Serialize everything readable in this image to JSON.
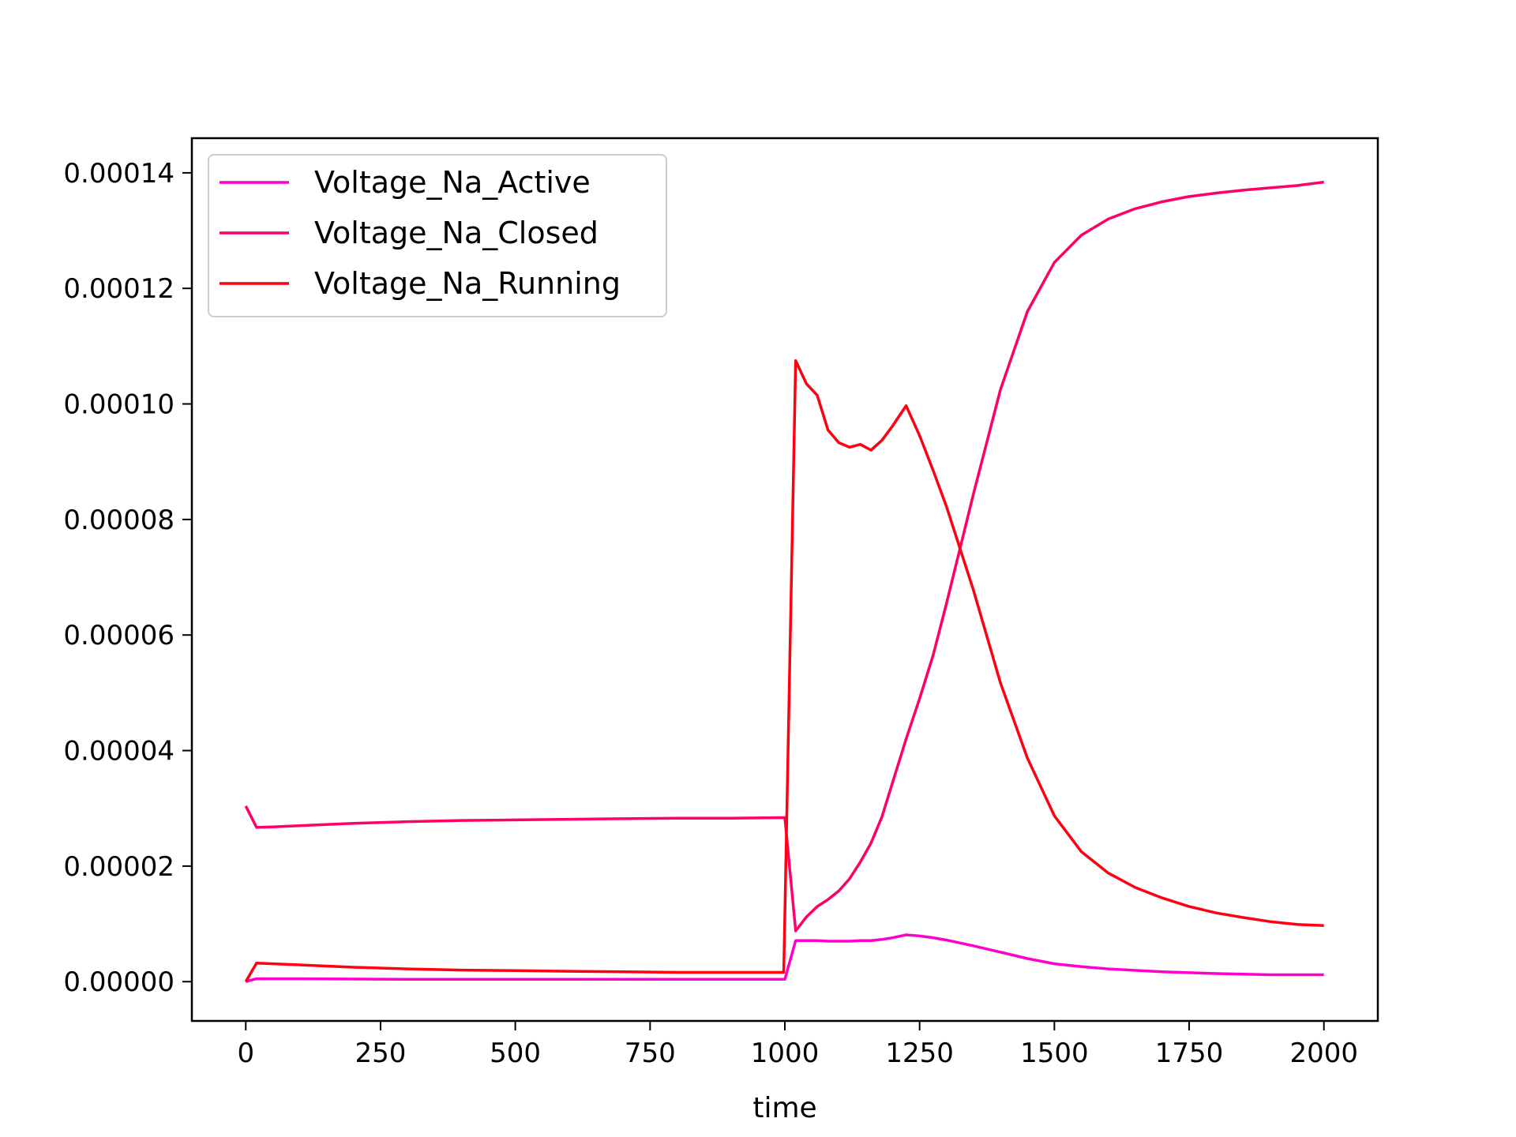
{
  "chart_data": {
    "type": "line",
    "title": "",
    "xlabel": "time",
    "ylabel": "",
    "xlim": [
      -100,
      2100
    ],
    "ylim": [
      -6.8e-06,
      0.000146
    ],
    "xticks": [
      0,
      250,
      500,
      750,
      1000,
      1250,
      1500,
      1750,
      2000
    ],
    "xtick_labels": [
      "0",
      "250",
      "500",
      "750",
      "1000",
      "1250",
      "1500",
      "1750",
      "2000"
    ],
    "yticks": [
      0,
      2e-05,
      4e-05,
      6e-05,
      8e-05,
      0.0001,
      0.00012,
      0.00014
    ],
    "ytick_labels": [
      "0.00000",
      "0.00002",
      "0.00004",
      "0.00006",
      "0.00008",
      "0.00010",
      "0.00012",
      "0.00014"
    ],
    "grid": false,
    "legend_position": "top-left",
    "series": [
      {
        "name": "Voltage_Na_Active",
        "color": "#ff00cc",
        "x": [
          0,
          20,
          100,
          300,
          500,
          700,
          1000,
          1020,
          1040,
          1060,
          1080,
          1100,
          1120,
          1140,
          1160,
          1180,
          1200,
          1225,
          1250,
          1275,
          1300,
          1350,
          1400,
          1450,
          1500,
          1550,
          1600,
          1700,
          1800,
          1900,
          2000
        ],
        "y": [
          0.0,
          5e-07,
          5e-07,
          4e-07,
          4e-07,
          4e-07,
          4e-07,
          7.1e-06,
          7.1e-06,
          7.1e-06,
          7e-06,
          7e-06,
          7e-06,
          7.1e-06,
          7.1e-06,
          7.3e-06,
          7.6e-06,
          8.1e-06,
          7.9e-06,
          7.6e-06,
          7.2e-06,
          6.2e-06,
          5.1e-06,
          4e-06,
          3.1e-06,
          2.6e-06,
          2.2e-06,
          1.7e-06,
          1.4e-06,
          1.2e-06,
          1.2e-06
        ]
      },
      {
        "name": "Voltage_Na_Closed",
        "color": "#ff0066",
        "x": [
          0,
          20,
          50,
          100,
          200,
          300,
          400,
          500,
          600,
          700,
          800,
          900,
          1000,
          1020,
          1040,
          1060,
          1080,
          1100,
          1120,
          1140,
          1160,
          1180,
          1200,
          1225,
          1250,
          1275,
          1300,
          1350,
          1400,
          1450,
          1500,
          1550,
          1600,
          1650,
          1700,
          1750,
          1800,
          1850,
          1900,
          1950,
          2000
        ],
        "y": [
          3.04e-05,
          2.67e-05,
          2.68e-05,
          2.7e-05,
          2.74e-05,
          2.77e-05,
          2.79e-05,
          2.8e-05,
          2.81e-05,
          2.82e-05,
          2.83e-05,
          2.83e-05,
          2.84e-05,
          8.8e-06,
          1.12e-05,
          1.3e-05,
          1.42e-05,
          1.57e-05,
          1.78e-05,
          2.07e-05,
          2.4e-05,
          2.85e-05,
          3.45e-05,
          4.2e-05,
          4.9e-05,
          5.65e-05,
          6.55e-05,
          8.45e-05,
          0.0001025,
          0.000116,
          0.0001245,
          0.0001292,
          0.000132,
          0.0001338,
          0.000135,
          0.0001359,
          0.0001365,
          0.000137,
          0.0001374,
          0.0001378,
          0.0001384
        ]
      },
      {
        "name": "Voltage_Na_Running",
        "color": "#ff0011",
        "x": [
          0,
          20,
          50,
          100,
          200,
          300,
          400,
          500,
          600,
          700,
          800,
          900,
          998,
          1020,
          1040,
          1060,
          1080,
          1100,
          1120,
          1140,
          1160,
          1180,
          1200,
          1225,
          1250,
          1275,
          1300,
          1350,
          1400,
          1450,
          1500,
          1550,
          1600,
          1650,
          1700,
          1750,
          1800,
          1850,
          1900,
          1950,
          2000
        ],
        "y": [
          0.0,
          3.2e-06,
          3.1e-06,
          2.9e-06,
          2.5e-06,
          2.2e-06,
          2e-06,
          1.9e-06,
          1.8e-06,
          1.7e-06,
          1.6e-06,
          1.6e-06,
          1.6e-06,
          0.0001075,
          0.0001035,
          0.0001015,
          9.55e-05,
          9.33e-05,
          9.25e-05,
          9.3e-05,
          9.2e-05,
          9.37e-05,
          9.62e-05,
          9.97e-05,
          9.45e-05,
          8.85e-05,
          8.22e-05,
          6.77e-05,
          5.17e-05,
          3.87e-05,
          2.87e-05,
          2.25e-05,
          1.88e-05,
          1.63e-05,
          1.45e-05,
          1.3e-05,
          1.19e-05,
          1.11e-05,
          1.04e-05,
          9.9e-06,
          9.7e-06
        ]
      }
    ]
  }
}
